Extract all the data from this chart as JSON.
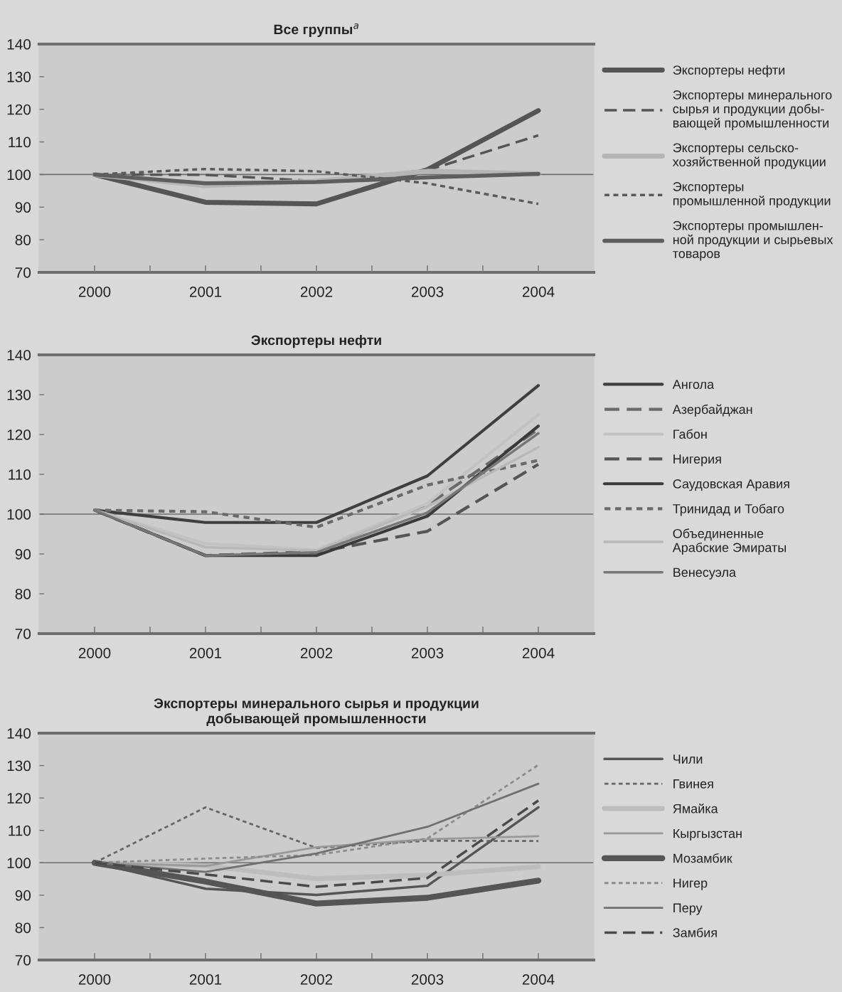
{
  "chart_data": [
    {
      "type": "line",
      "title": "Все группы$^{a}$",
      "x": [
        2000,
        2001,
        2002,
        2003,
        2004
      ],
      "xlim": [
        1999.5,
        2004.5
      ],
      "xticks": [
        2000,
        {
          "value": 2000.5,
          "label": null
        },
        2001,
        {
          "value": 2001.5,
          "label": null
        },
        2002,
        {
          "value": 2002.5,
          "label": null
        },
        2003,
        {
          "value": 2003.5,
          "label": null
        },
        2004
      ],
      "ylim": [
        70,
        140
      ],
      "yticks": [
        70,
        80,
        90,
        100,
        110,
        120,
        130,
        140
      ],
      "legend": "right",
      "marker": "none",
      "ref_lines": [
        {
          "axis": "y",
          "value": 100,
          "color": "#6e6e6e"
        }
      ],
      "series": [
        {
          "name": "Экспортеры нефти",
          "color": "#555555",
          "line_style": "solid",
          "values": [
            100,
            91.5,
            91,
            101.5,
            119.6
          ]
        },
        {
          "name": "Экспортеры минерального\nсырья и продукции добы-\nвающей промышленности",
          "color": "#555555",
          "line_style": "dashed",
          "values": [
            100,
            99.9,
            98,
            101.3,
            112
          ]
        },
        {
          "name": "Экспортеры сельско-\nхозяйственной продукции",
          "color": "#b5b5b5",
          "line_style": "solid",
          "values": [
            100,
            96.6,
            98,
            101,
            100.2
          ]
        },
        {
          "name": "Экспортеры\nпромышленной продукции",
          "color": "#5a5a5a",
          "line_style": "dotted",
          "values": [
            100,
            101.7,
            101,
            97.3,
            91
          ]
        },
        {
          "name": "Экспортеры промышлен-\nной продукции и сырьевых\nтоваров",
          "color": "#5e5e5e",
          "line_style": "solid",
          "values": [
            100,
            97.3,
            97.7,
            99.1,
            100.2
          ]
        }
      ]
    },
    {
      "type": "line",
      "title": "Экспортеры нефти",
      "x": [
        2000,
        2001,
        2002,
        2003,
        2004
      ],
      "xlim": [
        1999.5,
        2004.5
      ],
      "xticks": [
        2000,
        {
          "value": 2000.5,
          "label": null
        },
        2001,
        {
          "value": 2001.5,
          "label": null
        },
        2002,
        {
          "value": 2002.5,
          "label": null
        },
        2003,
        {
          "value": 2003.5,
          "label": null
        },
        2004
      ],
      "ylim": [
        70,
        140
      ],
      "yticks": [
        70,
        80,
        90,
        100,
        110,
        120,
        130,
        140
      ],
      "legend": "right",
      "marker": "none",
      "ref_lines": [
        {
          "axis": "y",
          "value": 100,
          "color": "#6e6e6e"
        }
      ],
      "series": [
        {
          "name": "Ангола",
          "color": "#3f3f3f",
          "line_style": "solid",
          "values": [
            101,
            97.9,
            97.9,
            109.6,
            132.3
          ]
        },
        {
          "name": "Азербайджан",
          "color": "#6a6a6a",
          "line_style": "dashed",
          "values": [
            101,
            89.6,
            90.6,
            102.3,
            121.3
          ]
        },
        {
          "name": "Габон",
          "color": "#c2c2c2",
          "line_style": "solid",
          "values": [
            101,
            92.6,
            91,
            102.7,
            125
          ]
        },
        {
          "name": "Нигерия",
          "color": "#555555",
          "line_style": "dashed",
          "values": [
            101,
            89.6,
            90.4,
            95.7,
            112.5
          ]
        },
        {
          "name": "Саудовская Аравия",
          "color": "#3a3a3a",
          "line_style": "solid",
          "values": [
            101,
            89.6,
            89.6,
            99.5,
            122.1
          ]
        },
        {
          "name": "Тринидад и Тобаго",
          "color": "#6a6a6a",
          "line_style": "dotted",
          "values": [
            101,
            100.6,
            96.7,
            107.3,
            113.5
          ]
        },
        {
          "name": "Объединенные\nАрабские Эмираты",
          "color": "#b8b8b8",
          "line_style": "solid",
          "values": [
            101,
            91.7,
            90.8,
            101.9,
            116.8
          ]
        },
        {
          "name": "Венесуэла",
          "color": "#777777",
          "line_style": "solid",
          "values": [
            101,
            89.6,
            90.4,
            100.4,
            120.3
          ]
        }
      ]
    },
    {
      "type": "line",
      "title": "Экспортеры минерального сырья и продукции\nдобывающей промышленности",
      "x": [
        2000,
        2001,
        2002,
        2003,
        2004
      ],
      "xlim": [
        1999.5,
        2004.5
      ],
      "xticks": [
        2000,
        {
          "value": 2000.5,
          "label": null
        },
        2001,
        {
          "value": 2001.5,
          "label": null
        },
        2002,
        {
          "value": 2002.5,
          "label": null
        },
        2003,
        {
          "value": 2003.5,
          "label": null
        },
        2004
      ],
      "ylim": [
        70,
        140
      ],
      "yticks": [
        70,
        80,
        90,
        100,
        110,
        120,
        130,
        140
      ],
      "legend": "right",
      "marker": "none",
      "ref_lines": [
        {
          "axis": "y",
          "value": 100,
          "color": "#6e6e6e"
        }
      ],
      "series": [
        {
          "name": "Чили",
          "color": "#555555",
          "line_style": "solid",
          "values": [
            100,
            92,
            90.1,
            92.9,
            117.1
          ]
        },
        {
          "name": "Гвинея",
          "color": "#666666",
          "line_style": "dotted",
          "values": [
            100,
            117.1,
            104.6,
            106.8,
            106.7
          ]
        },
        {
          "name": "Ямайка",
          "color": "#bdbdbd",
          "line_style": "solid",
          "values": [
            100,
            99.1,
            95.1,
            96.2,
            98.8
          ]
        },
        {
          "name": "Кыргызстан",
          "color": "#999999",
          "line_style": "solid",
          "values": [
            100,
            99,
            104.8,
            107.3,
            108.2
          ]
        },
        {
          "name": "Мозамбик",
          "color": "#555555",
          "line_style": "solid",
          "values": [
            100,
            94.2,
            87.4,
            89.2,
            94.5
          ]
        },
        {
          "name": "Нигер",
          "color": "#8c8c8c",
          "line_style": "dotted",
          "values": [
            100,
            101.3,
            102.4,
            107.5,
            130.2
          ]
        },
        {
          "name": "Перу",
          "color": "#707070",
          "line_style": "solid",
          "values": [
            100,
            97.2,
            102.9,
            111.1,
            124.4
          ]
        },
        {
          "name": "Замбия",
          "color": "#4a4a4a",
          "line_style": "dashed",
          "values": [
            100,
            96.4,
            92.6,
            95.3,
            119.2
          ]
        }
      ]
    }
  ]
}
